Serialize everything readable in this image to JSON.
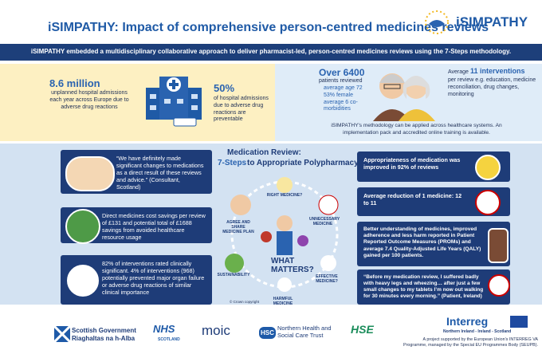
{
  "header": {
    "title": "iSIMPATHY: Impact of comprehensive person-centred medicines reviews",
    "logo": "iSIMPATHY"
  },
  "banner": "iSIMPATHY embedded a multidisciplinary collaborative approach to deliver pharmacist-led, person-centred medicines reviews using the 7-Steps methodology.",
  "burden": [
    {
      "figure": "8.6 million",
      "text": "unplanned hospital admissions each year across Europe due to adverse drug reactions"
    },
    {
      "figure": "50%",
      "text": "of hospital admissions due to adverse drug reactions are preventable"
    }
  ],
  "reach": {
    "figure": "Over 6400",
    "label": "patients reviewed",
    "bullets": [
      "average age 72",
      "53% female",
      "average 6 co-morbidities"
    ],
    "interventions": {
      "lead": "Average",
      "figure": "11 interventions",
      "text": "per review e.g. education, medicine reconciliation, drug changes, monitoring"
    },
    "note": "iSIMPATHY's methodology can be applied across healthcare systems. An implementation pack and accredited online training is available."
  },
  "left_cards": [
    "“We have definitely made significant changes to medications as a direct result of these reviews and advice.” (Consultant, Scotland)",
    "Direct medicines cost savings per review of £131 and potential total of £1688 savings from avoided healthcare resource usage",
    "82% of interventions rated clinically significant. 4% of interventions (968) potentially prevented major organ failure or adverse drug reactions of similar clinical importance"
  ],
  "diagram": {
    "title": "Medication Review:",
    "steps_label": "7-Steps",
    "subtitle": "to Appropriate Polypharmacy",
    "steps": [
      "RIGHT MEDICINE?",
      "UNNECESSARY MEDICINE",
      "EFFECTIVE MEDICINE?",
      "HARMFUL MEDICINE",
      "SUSTAINABILITY",
      "AGREE AND SHARE MEDICINE PLAN"
    ],
    "centre": "WHAT MATTERS?",
    "copyright": "© Crown copyright"
  },
  "right_cards": [
    "Appropriateness of medication was improved in 92% of reviews",
    "Average reduction of 1 medicine: 12 to 11",
    "Better understanding of medicines, improved adherence and less harm reported in Patient Reported Outcome Measures (PROMs) and average 7.4 Quality-Adjusted Life Years (QALY) gained per 100 patients.",
    "“Before my medication review, I suffered badly with heavy legs and wheezing… after just a few small changes to my tablets I’m now out walking for 30 minutes every morning.” (Patient, Ireland)"
  ],
  "footer": {
    "scot_gov": "Scottish Government",
    "scot_gov_gaelic": "Riaghaltas na h-Alba",
    "nhs": "NHS",
    "nhs_region": "SCOTLAND",
    "moic": "moic",
    "hsc": "HSC",
    "hsc_trust": "Northern Health and Social Care Trust",
    "hse": "HSE",
    "programme": "Interreg",
    "region": "Northern Ireland - Ireland - Scotland",
    "funding": "A project supported by the European Union's INTERREG VA Programme, managed by the Special EU Programmes Body (SEUPB)."
  }
}
